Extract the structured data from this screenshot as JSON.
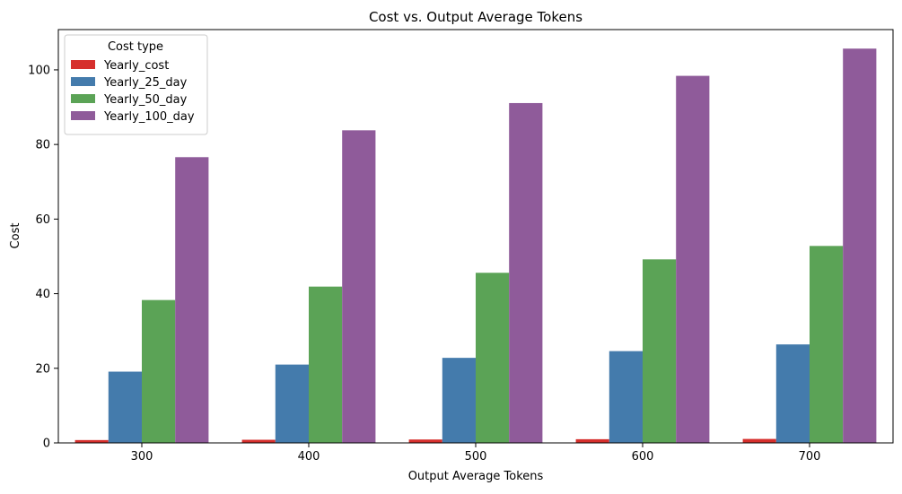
{
  "chart_data": {
    "type": "bar",
    "title": "Cost vs. Output Average Tokens",
    "xlabel": "Output Average Tokens",
    "ylabel": "Cost",
    "categories": [
      "300",
      "400",
      "500",
      "600",
      "700"
    ],
    "ylim": [
      0,
      110.8
    ],
    "yticks": [
      0,
      20,
      40,
      60,
      80,
      100
    ],
    "grid": false,
    "legend": {
      "title": "Cost type",
      "placement": "top-left"
    },
    "series": [
      {
        "name": "Yearly_cost",
        "color": "#d62f2c",
        "values": [
          0.76,
          0.84,
          0.91,
          0.99,
          1.06
        ]
      },
      {
        "name": "Yearly_25_day",
        "color": "#447bac",
        "values": [
          19.1,
          21.0,
          22.8,
          24.6,
          26.4
        ]
      },
      {
        "name": "Yearly_50_day",
        "color": "#5ba356",
        "values": [
          38.3,
          41.9,
          45.6,
          49.2,
          52.8
        ]
      },
      {
        "name": "Yearly_100_day",
        "color": "#8f5b9a",
        "values": [
          76.6,
          83.8,
          91.1,
          98.4,
          105.7
        ]
      }
    ]
  }
}
